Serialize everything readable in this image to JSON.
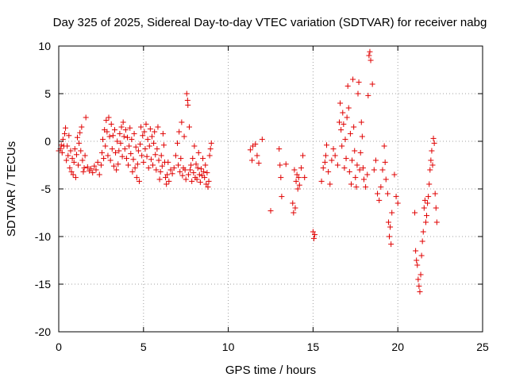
{
  "chart_data": {
    "type": "scatter",
    "title": "Day 325 of 2025, Sidereal Day-to-day VTEC variation (SDTVAR) for receiver nabg",
    "xlabel": "GPS time / hours",
    "ylabel": "SDTVAR / TECUs",
    "xlim": [
      0,
      25
    ],
    "ylim": [
      -20,
      10
    ],
    "xticks": [
      "0",
      "5",
      "10",
      "15",
      "20",
      "25"
    ],
    "yticks": [
      "10",
      "5",
      "0",
      "-5",
      "-10",
      "-15",
      "-20"
    ],
    "grid": true,
    "marker": "+",
    "color": "#e00000",
    "series": [
      {
        "name": "SDTVAR",
        "points": [
          [
            0.0,
            -1.0
          ],
          [
            0.1,
            -0.8
          ],
          [
            0.15,
            -0.4
          ],
          [
            0.2,
            -1.2
          ],
          [
            0.25,
            0.2
          ],
          [
            0.3,
            -0.5
          ],
          [
            0.35,
            0.8
          ],
          [
            0.4,
            1.4
          ],
          [
            0.45,
            -2.0
          ],
          [
            0.5,
            -0.5
          ],
          [
            0.55,
            -1.5
          ],
          [
            0.6,
            0.6
          ],
          [
            0.65,
            -2.8
          ],
          [
            0.7,
            -1.0
          ],
          [
            0.75,
            -3.2
          ],
          [
            0.8,
            -1.8
          ],
          [
            0.85,
            -3.5
          ],
          [
            0.9,
            -2.2
          ],
          [
            0.95,
            -0.8
          ],
          [
            1.0,
            -3.8
          ],
          [
            1.05,
            -1.4
          ],
          [
            1.1,
            0.4
          ],
          [
            1.15,
            -2.5
          ],
          [
            1.2,
            -0.2
          ],
          [
            1.25,
            0.9
          ],
          [
            1.3,
            -1.0
          ],
          [
            1.35,
            1.5
          ],
          [
            1.4,
            -2.0
          ],
          [
            1.45,
            -3.2
          ],
          [
            1.5,
            -2.8
          ],
          [
            1.55,
            -1.5
          ],
          [
            1.6,
            2.5
          ],
          [
            1.7,
            -2.7
          ],
          [
            1.8,
            -3.1
          ],
          [
            1.9,
            -2.9
          ],
          [
            2.0,
            -3.3
          ],
          [
            2.1,
            -2.6
          ],
          [
            2.2,
            -3.0
          ],
          [
            2.3,
            -2.2
          ],
          [
            2.4,
            -3.5
          ],
          [
            2.5,
            -2.5
          ],
          [
            2.55,
            -1.2
          ],
          [
            2.6,
            0.2
          ],
          [
            2.65,
            -1.8
          ],
          [
            2.7,
            1.2
          ],
          [
            2.75,
            -0.5
          ],
          [
            2.8,
            2.2
          ],
          [
            2.85,
            1.0
          ],
          [
            2.9,
            -1.5
          ],
          [
            2.95,
            2.5
          ],
          [
            3.0,
            0.5
          ],
          [
            3.05,
            -2.0
          ],
          [
            3.1,
            1.8
          ],
          [
            3.15,
            -0.8
          ],
          [
            3.2,
            0.6
          ],
          [
            3.25,
            -2.6
          ],
          [
            3.3,
            1.2
          ],
          [
            3.35,
            -1.2
          ],
          [
            3.4,
            -3.0
          ],
          [
            3.45,
            0.0
          ],
          [
            3.5,
            -2.4
          ],
          [
            3.55,
            -1.0
          ],
          [
            3.6,
            0.8
          ],
          [
            3.65,
            -0.2
          ],
          [
            3.7,
            1.5
          ],
          [
            3.75,
            -1.6
          ],
          [
            3.8,
            2.0
          ],
          [
            3.85,
            0.5
          ],
          [
            3.9,
            -0.8
          ],
          [
            3.95,
            1.2
          ],
          [
            4.0,
            -1.8
          ],
          [
            4.05,
            0.4
          ],
          [
            4.1,
            -2.5
          ],
          [
            4.15,
            -0.5
          ],
          [
            4.2,
            1.4
          ],
          [
            4.25,
            -1.3
          ],
          [
            4.3,
            0.2
          ],
          [
            4.35,
            -3.2
          ],
          [
            4.4,
            -1.9
          ],
          [
            4.45,
            0.8
          ],
          [
            4.5,
            -2.8
          ],
          [
            4.55,
            -0.6
          ],
          [
            4.6,
            -3.8
          ],
          [
            4.65,
            -2.4
          ],
          [
            4.7,
            -1.0
          ],
          [
            4.75,
            -4.2
          ],
          [
            4.8,
            -0.3
          ],
          [
            4.85,
            1.5
          ],
          [
            4.9,
            -1.5
          ],
          [
            4.95,
            0.6
          ],
          [
            5.0,
            -2.2
          ],
          [
            5.05,
            1.0
          ],
          [
            5.1,
            -0.8
          ],
          [
            5.15,
            1.8
          ],
          [
            5.2,
            -1.6
          ],
          [
            5.25,
            0.2
          ],
          [
            5.3,
            -2.8
          ],
          [
            5.35,
            -0.5
          ],
          [
            5.4,
            1.3
          ],
          [
            5.45,
            -1.9
          ],
          [
            5.5,
            0.5
          ],
          [
            5.55,
            -2.5
          ],
          [
            5.6,
            -0.2
          ],
          [
            5.65,
            1.0
          ],
          [
            5.7,
            -1.4
          ],
          [
            5.75,
            -3.0
          ],
          [
            5.8,
            -0.8
          ],
          [
            5.85,
            1.5
          ],
          [
            5.9,
            -2.0
          ],
          [
            5.95,
            -4.0
          ],
          [
            6.0,
            -3.2
          ],
          [
            6.05,
            -1.5
          ],
          [
            6.1,
            -2.6
          ],
          [
            6.15,
            0.8
          ],
          [
            6.2,
            -0.4
          ],
          [
            6.25,
            -2.2
          ],
          [
            6.3,
            -3.8
          ],
          [
            6.35,
            -4.5
          ],
          [
            6.4,
            -3.5
          ],
          [
            6.45,
            -2.2
          ],
          [
            6.5,
            -4.2
          ],
          [
            6.6,
            -3.0
          ],
          [
            6.7,
            -3.4
          ],
          [
            6.8,
            -2.8
          ],
          [
            6.9,
            -1.5
          ],
          [
            7.0,
            -0.2
          ],
          [
            7.05,
            -2.5
          ],
          [
            7.1,
            1.0
          ],
          [
            7.15,
            -3.2
          ],
          [
            7.2,
            -1.8
          ],
          [
            7.25,
            2.0
          ],
          [
            7.3,
            -3.6
          ],
          [
            7.35,
            -2.8
          ],
          [
            7.4,
            0.5
          ],
          [
            7.45,
            -3.0
          ],
          [
            7.5,
            -4.0
          ],
          [
            7.55,
            5.0
          ],
          [
            7.6,
            4.3
          ],
          [
            7.62,
            3.8
          ],
          [
            7.65,
            -3.5
          ],
          [
            7.7,
            1.5
          ],
          [
            7.75,
            -3.0
          ],
          [
            7.8,
            -2.5
          ],
          [
            7.85,
            -4.2
          ],
          [
            7.9,
            -1.8
          ],
          [
            7.95,
            -3.3
          ],
          [
            8.0,
            -0.5
          ],
          [
            8.05,
            -3.8
          ],
          [
            8.1,
            -2.4
          ],
          [
            8.15,
            -4.0
          ],
          [
            8.2,
            -2.8
          ],
          [
            8.25,
            -1.2
          ],
          [
            8.3,
            -3.5
          ],
          [
            8.35,
            -4.3
          ],
          [
            8.4,
            -2.9
          ],
          [
            8.45,
            -3.6
          ],
          [
            8.5,
            -1.8
          ],
          [
            8.55,
            -3.2
          ],
          [
            8.6,
            -3.8
          ],
          [
            8.65,
            -2.5
          ],
          [
            8.7,
            -4.5
          ],
          [
            8.75,
            -3.3
          ],
          [
            8.8,
            -4.8
          ],
          [
            8.85,
            -4.2
          ],
          [
            8.9,
            -1.5
          ],
          [
            8.95,
            -0.8
          ],
          [
            9.0,
            -0.2
          ],
          [
            11.3,
            -0.9
          ],
          [
            11.4,
            -2.0
          ],
          [
            11.45,
            -0.5
          ],
          [
            11.6,
            -0.3
          ],
          [
            11.7,
            -1.5
          ],
          [
            11.8,
            -2.3
          ],
          [
            12.0,
            0.2
          ],
          [
            12.5,
            -7.3
          ],
          [
            13.0,
            -0.8
          ],
          [
            13.05,
            -2.5
          ],
          [
            13.1,
            -3.8
          ],
          [
            13.15,
            -5.8
          ],
          [
            13.4,
            -2.4
          ],
          [
            13.8,
            -6.5
          ],
          [
            13.85,
            -7.5
          ],
          [
            13.9,
            -3.0
          ],
          [
            13.95,
            -7.0
          ],
          [
            14.0,
            -4.2
          ],
          [
            14.05,
            -3.5
          ],
          [
            14.1,
            -5.0
          ],
          [
            14.15,
            -3.8
          ],
          [
            14.2,
            -4.6
          ],
          [
            14.3,
            -2.8
          ],
          [
            14.4,
            -1.5
          ],
          [
            14.5,
            -3.8
          ],
          [
            15.0,
            -9.5
          ],
          [
            15.05,
            -10.2
          ],
          [
            15.1,
            -9.8
          ],
          [
            15.5,
            -4.2
          ],
          [
            15.6,
            -2.8
          ],
          [
            15.7,
            -2.2
          ],
          [
            15.75,
            -1.5
          ],
          [
            15.8,
            -0.4
          ],
          [
            15.9,
            -3.2
          ],
          [
            16.0,
            -4.5
          ],
          [
            16.1,
            -2.0
          ],
          [
            16.2,
            -0.8
          ],
          [
            16.3,
            -1.5
          ],
          [
            16.45,
            -2.5
          ],
          [
            16.55,
            2.0
          ],
          [
            16.6,
            4.0
          ],
          [
            16.65,
            1.2
          ],
          [
            16.7,
            -0.5
          ],
          [
            16.75,
            3.0
          ],
          [
            16.8,
            1.8
          ],
          [
            16.85,
            -2.8
          ],
          [
            16.9,
            0.2
          ],
          [
            16.95,
            -1.8
          ],
          [
            17.0,
            2.5
          ],
          [
            17.05,
            5.8
          ],
          [
            17.1,
            3.5
          ],
          [
            17.15,
            -3.2
          ],
          [
            17.2,
            0.8
          ],
          [
            17.25,
            -4.5
          ],
          [
            17.3,
            -2.0
          ],
          [
            17.35,
            6.5
          ],
          [
            17.4,
            1.5
          ],
          [
            17.45,
            -1.0
          ],
          [
            17.5,
            -3.8
          ],
          [
            17.55,
            -4.8
          ],
          [
            17.6,
            -2.5
          ],
          [
            17.65,
            5.0
          ],
          [
            17.7,
            6.2
          ],
          [
            17.75,
            -3.0
          ],
          [
            17.8,
            -1.2
          ],
          [
            17.85,
            2.0
          ],
          [
            17.9,
            0.5
          ],
          [
            17.95,
            -2.8
          ],
          [
            18.0,
            -4.0
          ],
          [
            18.1,
            -4.8
          ],
          [
            18.2,
            -3.5
          ],
          [
            18.25,
            4.8
          ],
          [
            18.3,
            9.0
          ],
          [
            18.35,
            9.4
          ],
          [
            18.4,
            8.5
          ],
          [
            18.5,
            6.0
          ],
          [
            18.6,
            -3.0
          ],
          [
            18.7,
            -2.0
          ],
          [
            18.8,
            -5.5
          ],
          [
            18.9,
            -6.2
          ],
          [
            19.0,
            -4.8
          ],
          [
            19.1,
            -3.0
          ],
          [
            19.2,
            -0.5
          ],
          [
            19.25,
            -2.2
          ],
          [
            19.3,
            -4.0
          ],
          [
            19.4,
            -5.5
          ],
          [
            19.45,
            -8.5
          ],
          [
            19.5,
            -10.0
          ],
          [
            19.55,
            -9.0
          ],
          [
            19.6,
            -10.8
          ],
          [
            19.65,
            -7.5
          ],
          [
            19.8,
            -3.5
          ],
          [
            19.9,
            -5.8
          ],
          [
            20.0,
            -6.5
          ],
          [
            21.0,
            -7.5
          ],
          [
            21.05,
            -11.5
          ],
          [
            21.1,
            -12.5
          ],
          [
            21.15,
            -13.0
          ],
          [
            21.2,
            -14.5
          ],
          [
            21.25,
            -15.2
          ],
          [
            21.3,
            -15.8
          ],
          [
            21.35,
            -14.0
          ],
          [
            21.4,
            -12.0
          ],
          [
            21.45,
            -10.5
          ],
          [
            21.5,
            -9.5
          ],
          [
            21.55,
            -7.0
          ],
          [
            21.6,
            -6.2
          ],
          [
            21.65,
            -8.5
          ],
          [
            21.7,
            -7.8
          ],
          [
            21.75,
            -6.5
          ],
          [
            21.8,
            -5.8
          ],
          [
            21.85,
            -4.5
          ],
          [
            21.9,
            -3.0
          ],
          [
            21.95,
            -2.0
          ],
          [
            22.0,
            -1.0
          ],
          [
            22.05,
            -2.5
          ],
          [
            22.1,
            0.3
          ],
          [
            22.15,
            -0.2
          ],
          [
            22.2,
            -5.5
          ],
          [
            22.25,
            -7.0
          ],
          [
            22.3,
            -8.5
          ]
        ]
      }
    ]
  }
}
